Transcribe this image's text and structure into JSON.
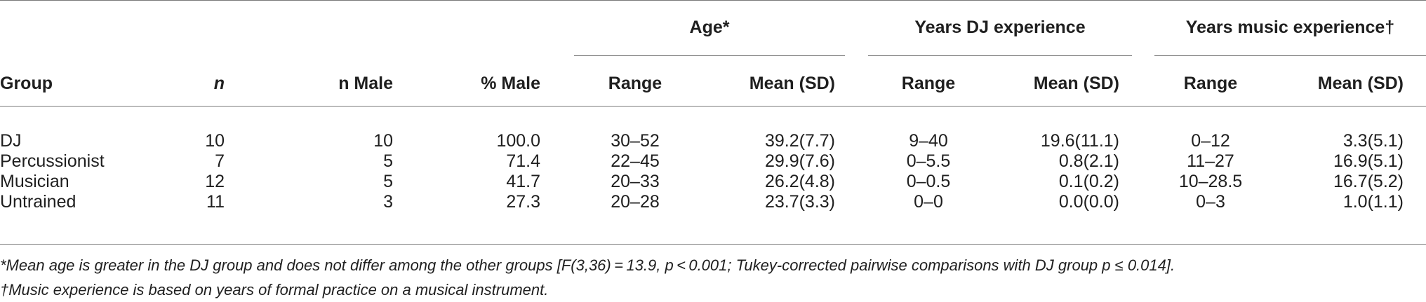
{
  "header": {
    "span_groups": [
      "Age*",
      "Years DJ experience",
      "Years music experience†"
    ],
    "columns": [
      "Group",
      "n",
      "n Male",
      "% Male",
      "Range",
      "Mean (SD)",
      "Range",
      "Mean (SD)",
      "Range",
      "Mean (SD)"
    ]
  },
  "rows": [
    [
      "DJ",
      "10",
      "10",
      "100.0",
      "30–52",
      "39.2(7.7)",
      "9–40",
      "19.6(11.1)",
      "0–12",
      "3.3(5.1)"
    ],
    [
      "Percussionist",
      "7",
      "5",
      "71.4",
      "22–45",
      "29.9(7.6)",
      "0–5.5",
      "0.8(2.1)",
      "11–27",
      "16.9(5.1)"
    ],
    [
      "Musician",
      "12",
      "5",
      "41.7",
      "20–33",
      "26.2(4.8)",
      "0–0.5",
      "0.1(0.2)",
      "10–28.5",
      "16.7(5.2)"
    ],
    [
      "Untrained",
      "11",
      "3",
      "27.3",
      "20–28",
      "23.7(3.3)",
      "0–0",
      "0.0(0.0)",
      "0–3",
      "1.0(1.1)"
    ]
  ],
  "footnotes": [
    "*Mean age is greater in the DJ group and does not differ among the other groups [F(3,36) = 13.9, p < 0.001; Tukey-corrected pairwise comparisons with DJ group p ≤ 0.014].",
    "†Music experience is based on years of formal practice on a musical instrument."
  ]
}
